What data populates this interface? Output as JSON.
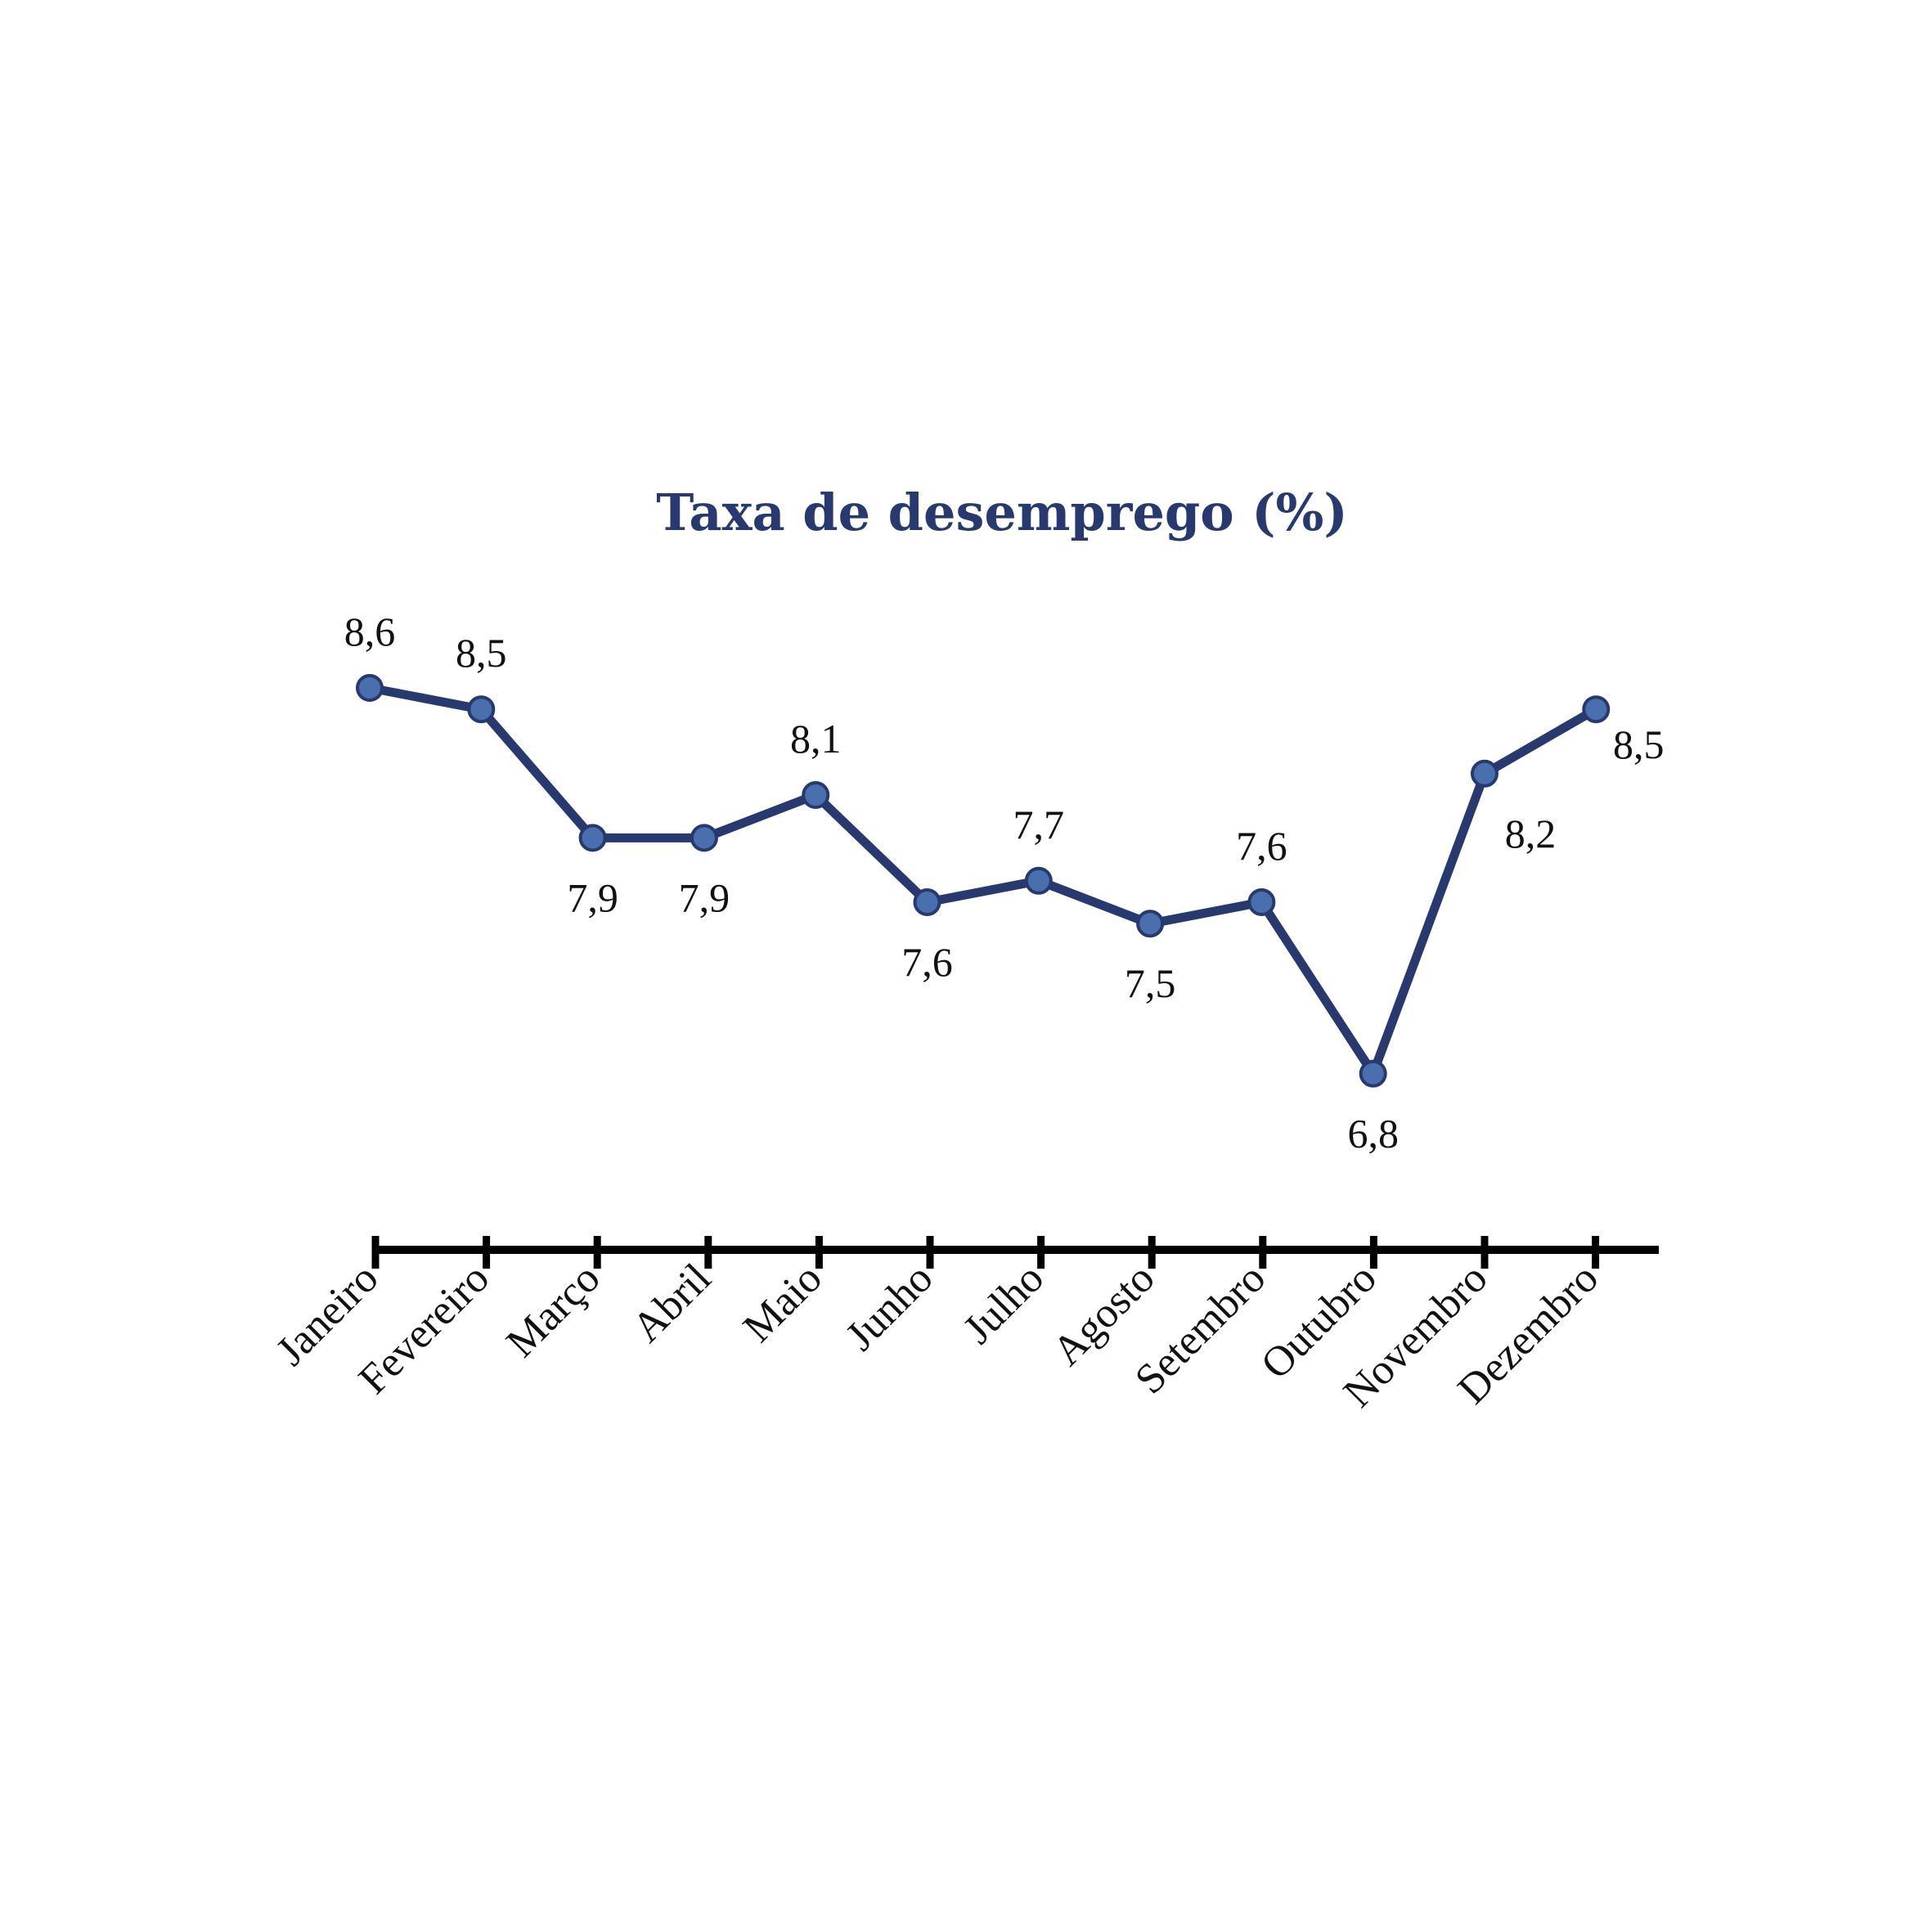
{
  "chart_data": {
    "type": "line",
    "title": "Taxa de desemprego (%)",
    "xlabel": "",
    "ylabel": "",
    "categories": [
      "Janeiro",
      "Fevereiro",
      "Março",
      "Abril",
      "Maio",
      "Junho",
      "Julho",
      "Agosto",
      "Setembro",
      "Outubro",
      "Novembro",
      "Dezembro"
    ],
    "series": [
      {
        "values": [
          8.6,
          8.5,
          7.9,
          7.9,
          8.1,
          7.6,
          7.7,
          7.5,
          7.6,
          6.8,
          8.2,
          8.5
        ],
        "labels": [
          "8,6",
          "8,5",
          "7,9",
          "7,9",
          "8,1",
          "7,6",
          "7,7",
          "7,5",
          "7,6",
          "6,8",
          "8,2",
          "8,5"
        ],
        "label_positions": [
          "above",
          "above",
          "below",
          "below",
          "above",
          "below",
          "above",
          "below",
          "above",
          "below",
          "below",
          "below"
        ]
      }
    ],
    "grid": false,
    "legend": "none",
    "colors": {
      "title": "#27396f",
      "line": "#27396f",
      "marker_fill": "#4a6fae",
      "marker_stroke": "#27396f",
      "axis": "#000000"
    }
  }
}
